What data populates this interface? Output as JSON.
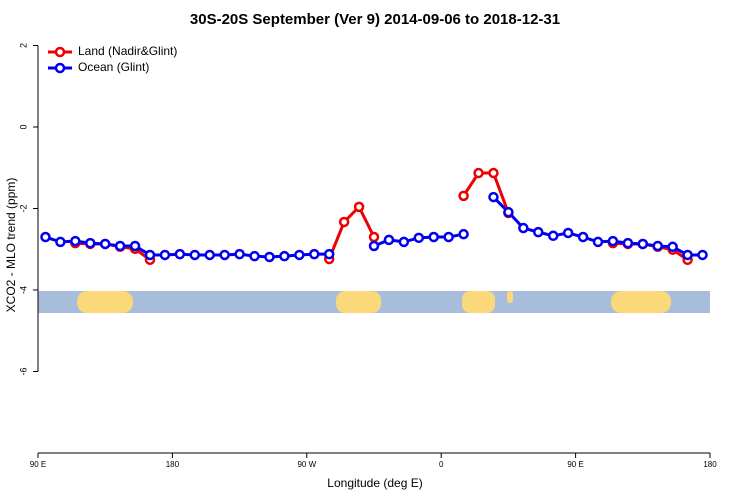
{
  "chart_data": {
    "type": "line",
    "title": "30S-20S September (Ver 9)   2014-09-06 to 2018-12-31",
    "x_label": "Longitude (deg E)",
    "y_label": "XCO2 - MLO trend (ppm)",
    "x": [
      95,
      105,
      115,
      125,
      135,
      145,
      155,
      165,
      175,
      185,
      195,
      205,
      215,
      225,
      235,
      245,
      255,
      265,
      275,
      285,
      295,
      305,
      315,
      325,
      335,
      345,
      355,
      365,
      375,
      385,
      395,
      405,
      415,
      425,
      435,
      445,
      455,
      465,
      475,
      485,
      495,
      505,
      515,
      525,
      535
    ],
    "series": [
      {
        "name": "Land (Nadir&Glint)",
        "color": "#ee0000",
        "values": [
          null,
          null,
          -2.85,
          -2.87,
          -2.87,
          -2.94,
          -2.99,
          -3.26,
          null,
          null,
          null,
          null,
          null,
          null,
          null,
          null,
          null,
          null,
          null,
          -3.24,
          -2.33,
          -1.96,
          -2.7,
          null,
          null,
          null,
          null,
          null,
          -1.69,
          -1.13,
          -1.13,
          -2.11,
          null,
          null,
          null,
          null,
          null,
          null,
          -2.85,
          -2.87,
          -2.87,
          -2.94,
          -3.01,
          -3.26,
          null
        ]
      },
      {
        "name": "Ocean (Glint)",
        "color": "#0000ee",
        "values": [
          -2.7,
          -2.82,
          -2.8,
          -2.85,
          -2.87,
          -2.92,
          -2.92,
          -3.14,
          -3.14,
          -3.12,
          -3.14,
          -3.14,
          -3.14,
          -3.12,
          -3.17,
          -3.19,
          -3.17,
          -3.14,
          -3.12,
          -3.12,
          null,
          null,
          -2.92,
          -2.77,
          -2.82,
          -2.72,
          -2.7,
          -2.7,
          -2.63,
          null,
          -1.72,
          -2.09,
          -2.48,
          -2.58,
          -2.67,
          -2.6,
          -2.7,
          -2.82,
          -2.8,
          -2.85,
          -2.87,
          -2.92,
          -2.94,
          -3.14,
          -3.14
        ]
      }
    ],
    "xlim": [
      90,
      540
    ],
    "xticks": [
      {
        "value": 90,
        "label": "90 E"
      },
      180,
      {
        "value": 270,
        "label": "90 W"
      },
      {
        "value": 360,
        "label": "0"
      },
      {
        "value": 450,
        "label": "90 E"
      },
      {
        "value": 540,
        "label": "180"
      }
    ],
    "ylim": [
      -8,
      2.25
    ],
    "yticks": [
      2,
      0,
      -2,
      -4,
      -6
    ],
    "legend": "top-left"
  }
}
